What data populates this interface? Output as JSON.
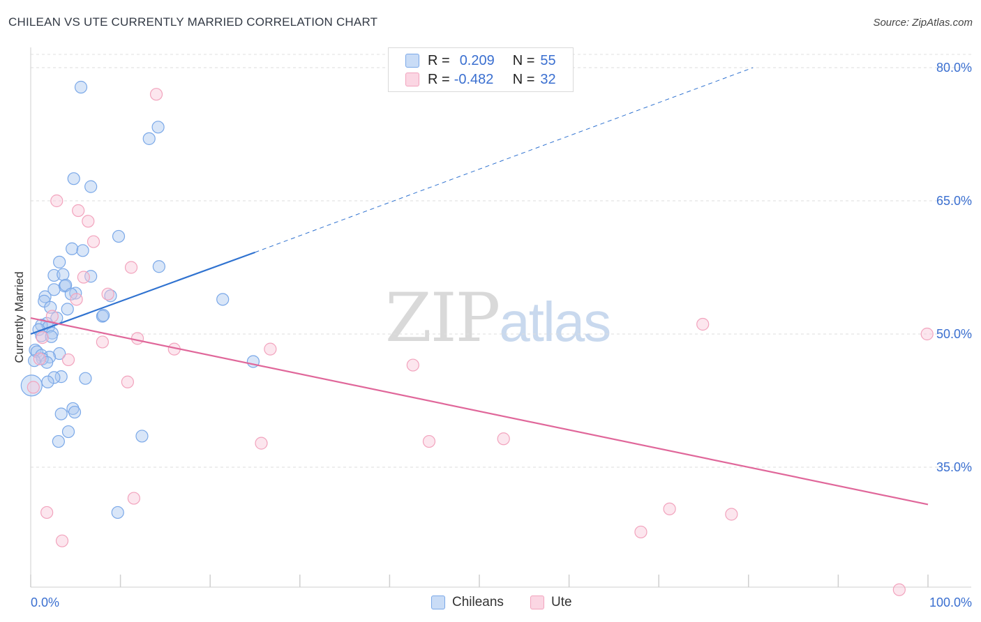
{
  "header": {
    "title": "CHILEAN VS UTE CURRENTLY MARRIED CORRELATION CHART",
    "source": "Source: ZipAtlas.com"
  },
  "legend_top": {
    "rows": [
      {
        "r_label": "R =",
        "r_value": "0.209",
        "n_label": "N =",
        "n_value": "55",
        "color": "#7aa8e8"
      },
      {
        "r_label": "R =",
        "r_value": "-0.482",
        "n_label": "N =",
        "n_value": "32",
        "color": "#f2a3bd"
      }
    ]
  },
  "legend_bottom": {
    "items": [
      {
        "label": "Chileans",
        "color": "#7aa8e8"
      },
      {
        "label": "Ute",
        "color": "#f2a3bd"
      }
    ]
  },
  "watermark": {
    "zip": "ZIP",
    "atlas": "atlas"
  },
  "chart_data": {
    "type": "scatter",
    "title": "CHILEAN VS UTE CURRENTLY MARRIED CORRELATION CHART",
    "xlabel": "",
    "ylabel": "Currently Married",
    "xlim": [
      0,
      100
    ],
    "ylim": [
      20,
      82
    ],
    "x_tick_labels": [
      {
        "value": 0,
        "label": "0.0%"
      },
      {
        "value": 100,
        "label": "100.0%"
      }
    ],
    "y_tick_labels": [
      {
        "value": 80,
        "label": "80.0%"
      },
      {
        "value": 65,
        "label": "65.0%"
      },
      {
        "value": 50,
        "label": "50.0%"
      },
      {
        "value": 35,
        "label": "35.0%"
      }
    ],
    "colors": {
      "chileans": "#6fa2e6",
      "ute": "#f09ab8",
      "chileans_line": "#2f72d0",
      "ute_line": "#e0679a"
    },
    "series": [
      {
        "name": "Chileans",
        "points": [
          [
            5.6,
            77.8
          ],
          [
            14.2,
            73.3
          ],
          [
            13.2,
            72.0
          ],
          [
            4.8,
            67.5
          ],
          [
            6.7,
            66.6
          ],
          [
            9.8,
            61.0
          ],
          [
            4.6,
            59.6
          ],
          [
            5.8,
            59.4
          ],
          [
            3.2,
            58.1
          ],
          [
            14.3,
            57.6
          ],
          [
            2.6,
            56.6
          ],
          [
            3.6,
            56.7
          ],
          [
            6.7,
            56.5
          ],
          [
            3.8,
            55.4
          ],
          [
            3.9,
            55.5
          ],
          [
            2.6,
            55.0
          ],
          [
            5.0,
            54.6
          ],
          [
            4.5,
            54.5
          ],
          [
            8.9,
            54.3
          ],
          [
            1.6,
            54.2
          ],
          [
            1.5,
            53.7
          ],
          [
            21.4,
            53.9
          ],
          [
            2.2,
            53.0
          ],
          [
            4.1,
            52.8
          ],
          [
            8.0,
            52.0
          ],
          [
            8.1,
            52.1
          ],
          [
            2.9,
            51.8
          ],
          [
            1.8,
            51.2
          ],
          [
            1.2,
            51.0
          ],
          [
            2.0,
            50.8
          ],
          [
            0.9,
            50.5
          ],
          [
            2.4,
            50.1
          ],
          [
            1.2,
            49.8
          ],
          [
            2.3,
            49.7
          ],
          [
            0.5,
            48.2
          ],
          [
            0.7,
            48.0
          ],
          [
            3.2,
            47.8
          ],
          [
            1.2,
            47.6
          ],
          [
            2.1,
            47.4
          ],
          [
            1.3,
            47.2
          ],
          [
            0.4,
            47.0
          ],
          [
            1.8,
            46.8
          ],
          [
            24.8,
            46.9
          ],
          [
            3.4,
            45.2
          ],
          [
            2.6,
            45.1
          ],
          [
            6.1,
            45.0
          ],
          [
            1.9,
            44.6
          ],
          [
            0.1,
            44.2
          ],
          [
            4.7,
            41.6
          ],
          [
            4.9,
            41.2
          ],
          [
            3.4,
            41.0
          ],
          [
            4.2,
            39.0
          ],
          [
            12.4,
            38.5
          ],
          [
            3.1,
            37.9
          ],
          [
            9.7,
            29.9
          ]
        ]
      },
      {
        "name": "Ute",
        "points": [
          [
            14.0,
            77.0
          ],
          [
            2.9,
            65.0
          ],
          [
            5.3,
            63.9
          ],
          [
            6.4,
            62.7
          ],
          [
            7.0,
            60.4
          ],
          [
            11.2,
            57.5
          ],
          [
            5.9,
            56.4
          ],
          [
            8.6,
            54.5
          ],
          [
            5.1,
            53.9
          ],
          [
            2.4,
            52.0
          ],
          [
            74.9,
            51.1
          ],
          [
            99.9,
            50.0
          ],
          [
            1.3,
            49.6
          ],
          [
            11.9,
            49.5
          ],
          [
            8.0,
            49.1
          ],
          [
            16.0,
            48.3
          ],
          [
            26.7,
            48.3
          ],
          [
            1.0,
            47.2
          ],
          [
            4.2,
            47.1
          ],
          [
            42.6,
            46.5
          ],
          [
            10.8,
            44.6
          ],
          [
            0.3,
            44.0
          ],
          [
            25.7,
            37.7
          ],
          [
            44.4,
            37.9
          ],
          [
            52.7,
            38.2
          ],
          [
            11.5,
            31.5
          ],
          [
            1.8,
            29.9
          ],
          [
            71.2,
            30.3
          ],
          [
            78.1,
            29.7
          ],
          [
            68.0,
            27.7
          ],
          [
            3.5,
            26.7
          ],
          [
            96.8,
            21.2
          ]
        ]
      }
    ],
    "trend_lines": [
      {
        "name": "Chileans",
        "x1": 0,
        "y1": 50.0,
        "x2": 25,
        "y2": 59.2,
        "style": "solid"
      },
      {
        "name": "Chileans (extrapolated)",
        "x1": 25,
        "y1": 59.2,
        "x2": 80.5,
        "y2": 80.0,
        "style": "dashed"
      },
      {
        "name": "Ute",
        "x1": 0,
        "y1": 51.8,
        "x2": 100,
        "y2": 30.8,
        "style": "solid"
      }
    ]
  }
}
